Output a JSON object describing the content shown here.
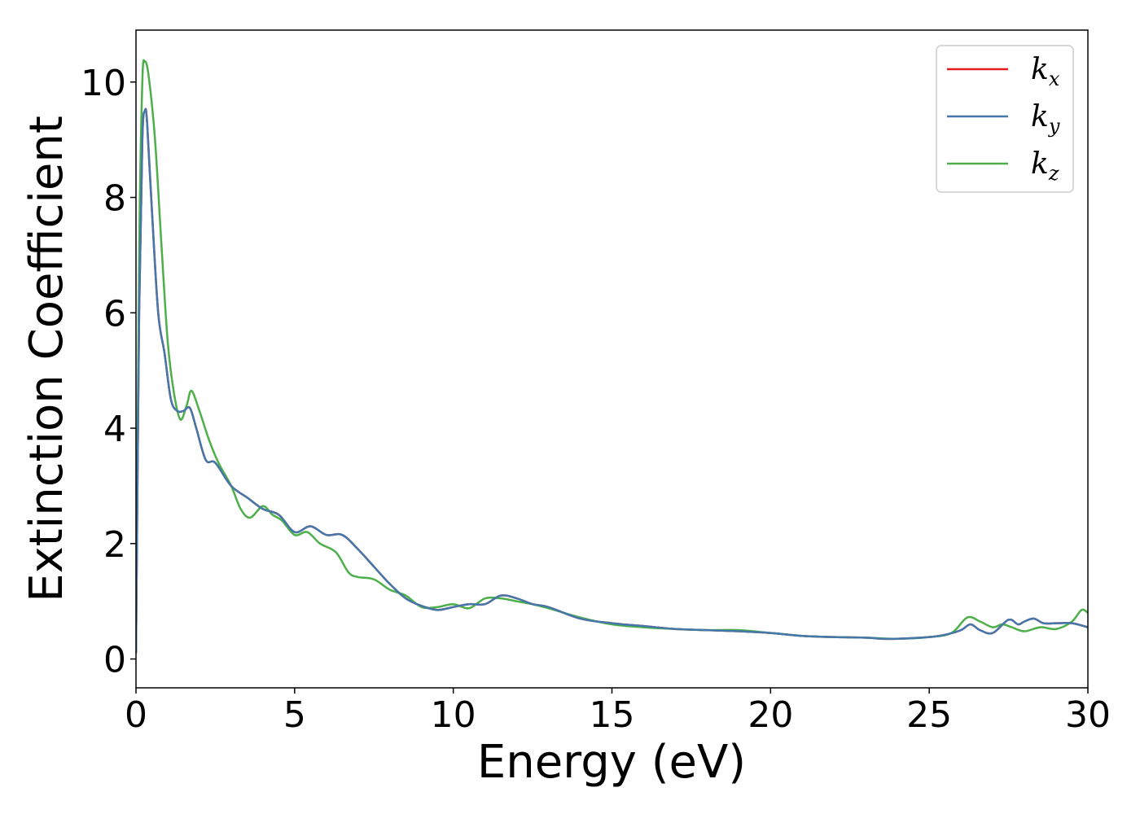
{
  "chart_data": {
    "type": "line",
    "title": "",
    "xlabel": "Energy (eV)",
    "ylabel": "Extinction Coefficient",
    "xlim": [
      0,
      30
    ],
    "ylim": [
      -0.5,
      10.9
    ],
    "xticks": [
      0,
      5,
      10,
      15,
      20,
      25,
      30
    ],
    "yticks": [
      0,
      2,
      4,
      6,
      8,
      10
    ],
    "grid": false,
    "legend_position": "top-right",
    "series": [
      {
        "name": "k_x",
        "label_base": "k",
        "label_sub": "x",
        "color": "#e41a1c",
        "x": [
          0,
          0.1,
          0.2,
          0.28,
          0.35,
          0.5,
          0.7,
          0.9,
          1.1,
          1.3,
          1.5,
          1.7,
          1.9,
          2.2,
          2.5,
          3.0,
          3.5,
          4.0,
          4.5,
          5.0,
          5.5,
          6.0,
          6.5,
          7.0,
          7.5,
          8.0,
          8.5,
          9.0,
          9.5,
          10.0,
          10.5,
          11.0,
          11.5,
          12.0,
          12.5,
          13.0,
          14.0,
          15.0,
          16.0,
          17.0,
          18.0,
          19.0,
          20.0,
          21.0,
          22.0,
          23.0,
          23.5,
          24.0,
          25.0,
          25.5,
          26.0,
          26.3,
          26.6,
          27.0,
          27.5,
          27.8,
          28.0,
          28.3,
          28.6,
          29.0,
          29.5,
          30.0
        ],
        "values": [
          0.1,
          6.0,
          9.0,
          9.5,
          9.3,
          7.8,
          6.0,
          5.3,
          4.5,
          4.3,
          4.3,
          4.35,
          4.0,
          3.45,
          3.4,
          3.0,
          2.8,
          2.6,
          2.5,
          2.2,
          2.3,
          2.15,
          2.15,
          1.9,
          1.6,
          1.3,
          1.05,
          0.92,
          0.85,
          0.9,
          0.95,
          0.95,
          1.1,
          1.05,
          0.95,
          0.9,
          0.7,
          0.62,
          0.57,
          0.52,
          0.5,
          0.48,
          0.45,
          0.4,
          0.38,
          0.37,
          0.35,
          0.35,
          0.38,
          0.42,
          0.5,
          0.6,
          0.5,
          0.45,
          0.68,
          0.6,
          0.65,
          0.7,
          0.62,
          0.62,
          0.62,
          0.55
        ]
      },
      {
        "name": "k_y",
        "label_base": "k",
        "label_sub": "y",
        "color": "#4477aa",
        "x": [
          0,
          0.1,
          0.2,
          0.28,
          0.35,
          0.5,
          0.7,
          0.9,
          1.1,
          1.3,
          1.5,
          1.7,
          1.9,
          2.2,
          2.5,
          3.0,
          3.5,
          4.0,
          4.5,
          5.0,
          5.5,
          6.0,
          6.5,
          7.0,
          7.5,
          8.0,
          8.5,
          9.0,
          9.5,
          10.0,
          10.5,
          11.0,
          11.5,
          12.0,
          12.5,
          13.0,
          14.0,
          15.0,
          16.0,
          17.0,
          18.0,
          19.0,
          20.0,
          21.0,
          22.0,
          23.0,
          23.5,
          24.0,
          25.0,
          25.5,
          26.0,
          26.3,
          26.6,
          27.0,
          27.5,
          27.8,
          28.0,
          28.3,
          28.6,
          29.0,
          29.5,
          30.0
        ],
        "values": [
          0.1,
          6.0,
          9.0,
          9.5,
          9.3,
          7.8,
          6.0,
          5.3,
          4.5,
          4.3,
          4.3,
          4.35,
          4.0,
          3.45,
          3.4,
          3.0,
          2.8,
          2.6,
          2.5,
          2.2,
          2.3,
          2.15,
          2.15,
          1.9,
          1.6,
          1.3,
          1.05,
          0.92,
          0.85,
          0.9,
          0.95,
          0.95,
          1.1,
          1.05,
          0.95,
          0.9,
          0.7,
          0.62,
          0.57,
          0.52,
          0.5,
          0.48,
          0.45,
          0.4,
          0.38,
          0.37,
          0.35,
          0.35,
          0.38,
          0.42,
          0.5,
          0.6,
          0.5,
          0.45,
          0.68,
          0.6,
          0.65,
          0.7,
          0.62,
          0.62,
          0.62,
          0.55
        ]
      },
      {
        "name": "k_z",
        "label_base": "k",
        "label_sub": "z",
        "color": "#4daf4a",
        "x": [
          0,
          0.1,
          0.2,
          0.28,
          0.4,
          0.6,
          0.8,
          1.0,
          1.2,
          1.4,
          1.6,
          1.75,
          2.0,
          2.3,
          2.6,
          3.0,
          3.3,
          3.6,
          4.0,
          4.3,
          4.6,
          5.0,
          5.4,
          5.8,
          6.3,
          6.7,
          7.0,
          7.5,
          8.0,
          8.5,
          9.0,
          9.5,
          10.0,
          10.5,
          11.0,
          11.5,
          12.0,
          12.5,
          13.0,
          14.0,
          15.0,
          16.0,
          17.0,
          18.0,
          19.0,
          20.0,
          21.0,
          22.0,
          23.0,
          24.0,
          25.0,
          25.7,
          26.2,
          26.6,
          27.0,
          27.3,
          27.6,
          28.0,
          28.5,
          29.0,
          29.5,
          29.8,
          30.0
        ],
        "values": [
          0.1,
          7.0,
          10.0,
          10.35,
          10.1,
          9.0,
          7.2,
          5.5,
          4.6,
          4.15,
          4.4,
          4.65,
          4.3,
          3.8,
          3.4,
          3.0,
          2.6,
          2.45,
          2.65,
          2.5,
          2.4,
          2.15,
          2.2,
          2.0,
          1.85,
          1.5,
          1.42,
          1.38,
          1.2,
          1.1,
          0.9,
          0.9,
          0.95,
          0.88,
          1.05,
          1.05,
          1.0,
          0.95,
          0.88,
          0.72,
          0.6,
          0.55,
          0.52,
          0.5,
          0.5,
          0.45,
          0.4,
          0.38,
          0.37,
          0.35,
          0.38,
          0.45,
          0.72,
          0.65,
          0.55,
          0.6,
          0.55,
          0.48,
          0.55,
          0.52,
          0.65,
          0.85,
          0.8
        ]
      }
    ]
  }
}
